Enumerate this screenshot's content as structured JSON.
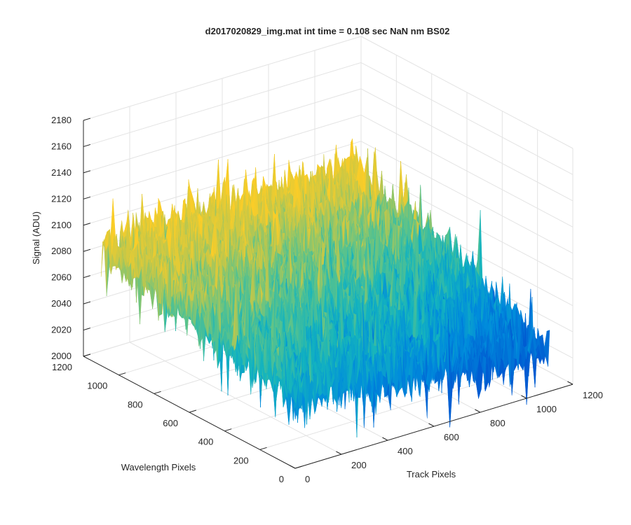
{
  "chart_data": {
    "type": "surface",
    "title": "d2017020829_img.mat int time = 0.108 sec  NaN nm BS02",
    "xlabel": "Track Pixels",
    "ylabel": "Wavelength Pixels",
    "zlabel": "Signal (ADU)",
    "xlim": [
      0,
      1200
    ],
    "ylim": [
      0,
      1200
    ],
    "zlim": [
      2000,
      2180
    ],
    "xticks": [
      "0",
      "200",
      "400",
      "600",
      "800",
      "1000",
      "1200"
    ],
    "yticks": [
      "0",
      "200",
      "400",
      "600",
      "800",
      "1000",
      "1200"
    ],
    "zticks": [
      "2000",
      "2020",
      "2040",
      "2060",
      "2080",
      "2100",
      "2120",
      "2140",
      "2160",
      "2180"
    ],
    "grid": true,
    "colormap": "parula",
    "data_extent": {
      "x": [
        0,
        1100
      ],
      "y": [
        0,
        1100
      ]
    },
    "mean_signal_profile": {
      "description_values": "mean signal (ADU) at corners of data extent",
      "x0_y0": 2055,
      "x1100_y0": 2030,
      "x0_y1100": 2090,
      "x1100_y1100": 2090
    },
    "noise_amplitude_adu": 18
  },
  "colors": {
    "grid": "#e3e3e3",
    "axis": "#262626",
    "colormap_low": "#0072bd",
    "colormap_mid": "#2fb6b8",
    "colormap_high": "#f5c733"
  }
}
